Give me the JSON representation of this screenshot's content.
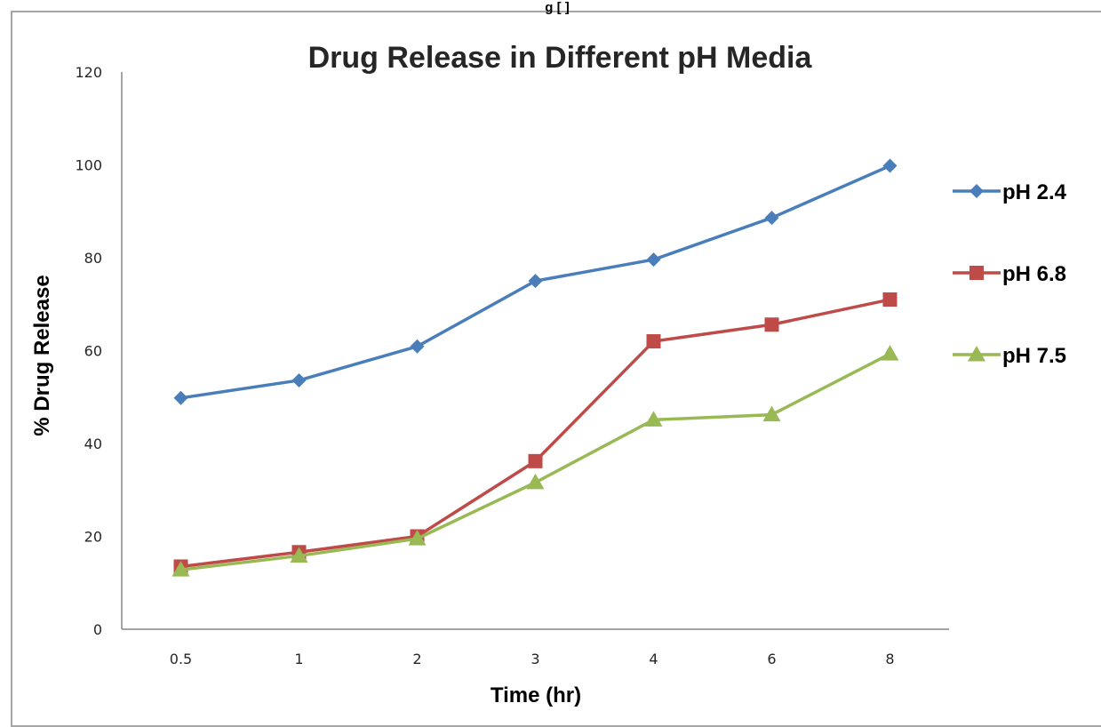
{
  "header_text": "g [ ]",
  "chart_data": {
    "type": "line",
    "title": "Drug Release in Different pH Media",
    "xlabel": "Time (hr)",
    "ylabel": "% Drug Release",
    "categories": [
      "0.5",
      "1",
      "2",
      "3",
      "4",
      "6",
      "8"
    ],
    "ylim": [
      0,
      120
    ],
    "yticks": [
      0,
      20,
      40,
      60,
      80,
      100,
      120
    ],
    "grid": false,
    "legend_position": "right",
    "series": [
      {
        "name": "pH 2.4",
        "color": "#4a7ebb",
        "marker": "diamond",
        "values": [
          49.8,
          53.6,
          60.9,
          75.0,
          79.6,
          88.6,
          99.8
        ]
      },
      {
        "name": "pH 6.8",
        "color": "#be4b48",
        "marker": "square",
        "values": [
          13.5,
          16.6,
          20.0,
          36.2,
          62.0,
          65.6,
          71.0
        ]
      },
      {
        "name": "pH 7.5",
        "color": "#98b954",
        "marker": "triangle",
        "values": [
          12.8,
          15.8,
          19.5,
          31.6,
          45.1,
          46.2,
          59.3
        ]
      }
    ]
  }
}
